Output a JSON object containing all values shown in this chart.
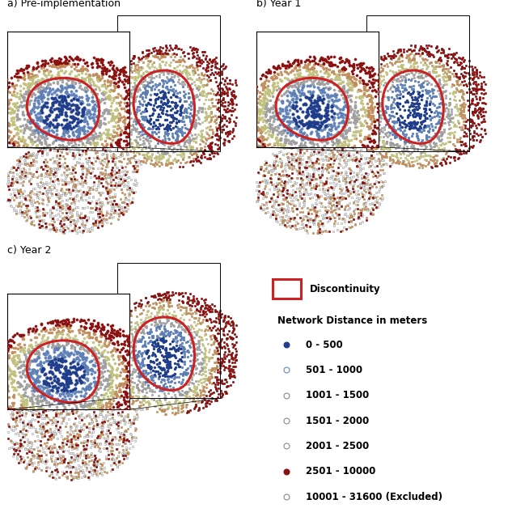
{
  "title_a": "a) Pre-implementation",
  "title_b": "b) Year 1",
  "title_c": "c) Year 2",
  "legend_title1": "Discontinuity",
  "legend_title2": "Network Distance in meters",
  "legend_entries": [
    {
      "label": "0 - 500",
      "color": "#1f3d8a",
      "edge": "#1f3d8a",
      "filled": true,
      "size": 4
    },
    {
      "label": "501 - 1000",
      "color": "#6688bb",
      "edge": "#6688bb",
      "filled": false,
      "size": 4
    },
    {
      "label": "1001 - 1500",
      "color": "#bbbbbb",
      "edge": "#888888",
      "filled": false,
      "size": 4
    },
    {
      "label": "1501 - 2000",
      "color": "#cccc88",
      "edge": "#888888",
      "filled": false,
      "size": 4
    },
    {
      "label": "2001 - 2500",
      "color": "#cc9966",
      "edge": "#888888",
      "filled": false,
      "size": 4
    },
    {
      "label": "2501 - 10000",
      "color": "#8b1010",
      "edge": "#8b1010",
      "filled": true,
      "size": 4
    },
    {
      "label": "10001 - 31600 (Excluded)",
      "color": "#ffffff",
      "edge": "#888888",
      "filled": false,
      "size": 4
    }
  ],
  "disc_color": "#cc2222",
  "background_color": "#ffffff",
  "seed": 42,
  "n_points": 3000
}
